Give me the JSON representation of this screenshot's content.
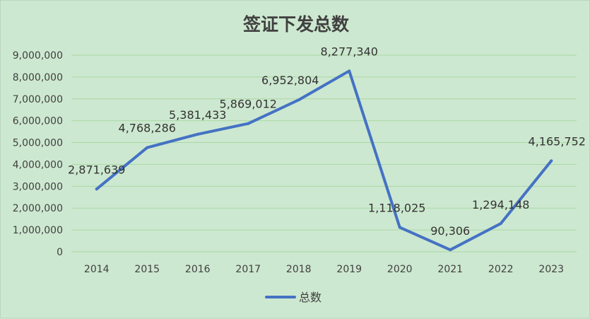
{
  "chart_data": {
    "type": "line",
    "title": "签证下发总数",
    "categories": [
      "2014",
      "2015",
      "2016",
      "2017",
      "2018",
      "2019",
      "2020",
      "2021",
      "2022",
      "2023"
    ],
    "series": [
      {
        "name": "总数",
        "values": [
          2871639,
          4768286,
          5381433,
          5869012,
          6952804,
          8277340,
          1118025,
          90306,
          1294148,
          4165752
        ],
        "labels": [
          "2,871,639",
          "4,768,286",
          "5,381,433",
          "5,869,012",
          "6,952,804",
          "8,277,340",
          "1,118,025",
          "90,306",
          "1,294,148",
          "4,165,752"
        ]
      }
    ],
    "yticks": [
      "0",
      "1,000,000",
      "2,000,000",
      "3,000,000",
      "4,000,000",
      "5,000,000",
      "6,000,000",
      "7,000,000",
      "8,000,000",
      "9,000,000"
    ],
    "ylim": [
      0,
      9000000
    ],
    "grid": true,
    "legend": "bottom",
    "colors": {
      "background": "#cde8d0",
      "line": "#4472c4",
      "grid": "#a9d9a4"
    }
  }
}
